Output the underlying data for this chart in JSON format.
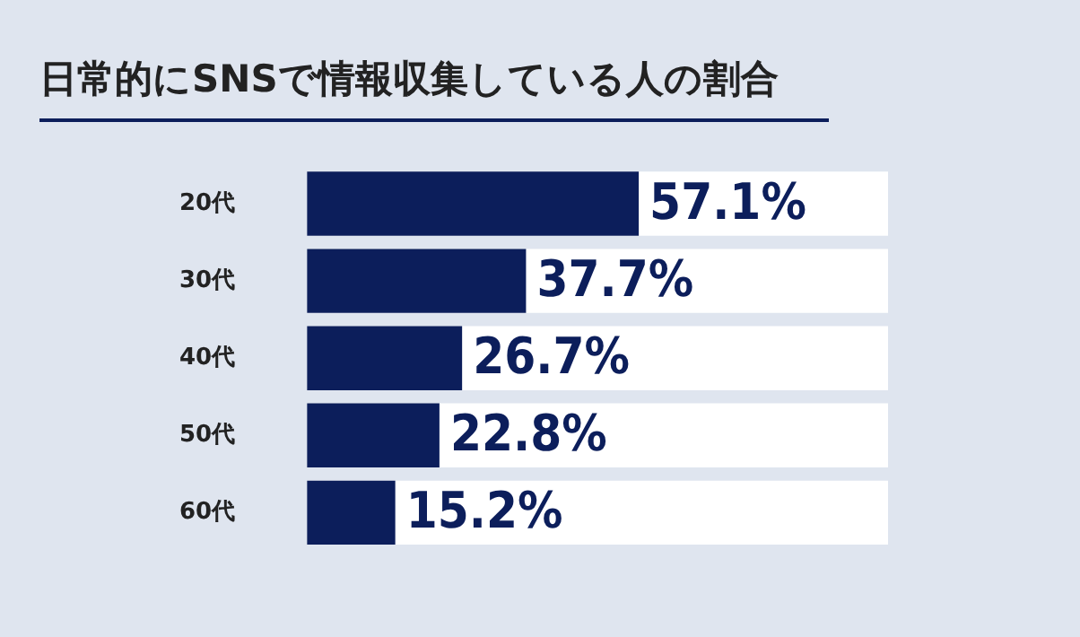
{
  "chart_data": {
    "type": "bar",
    "orientation": "horizontal",
    "title": "日常的にSNSで情報収集している人の割合",
    "categories": [
      "20代",
      "30代",
      "40代",
      "50代",
      "60代"
    ],
    "values": [
      57.1,
      37.7,
      26.7,
      22.8,
      15.2
    ],
    "value_labels": [
      "57.1%",
      "37.7%",
      "26.7%",
      "22.8%",
      "15.2%"
    ],
    "color": "#0c1e5b",
    "xlim": [
      0,
      100
    ],
    "tick_labels": "y",
    "grid": false,
    "legend": false
  }
}
